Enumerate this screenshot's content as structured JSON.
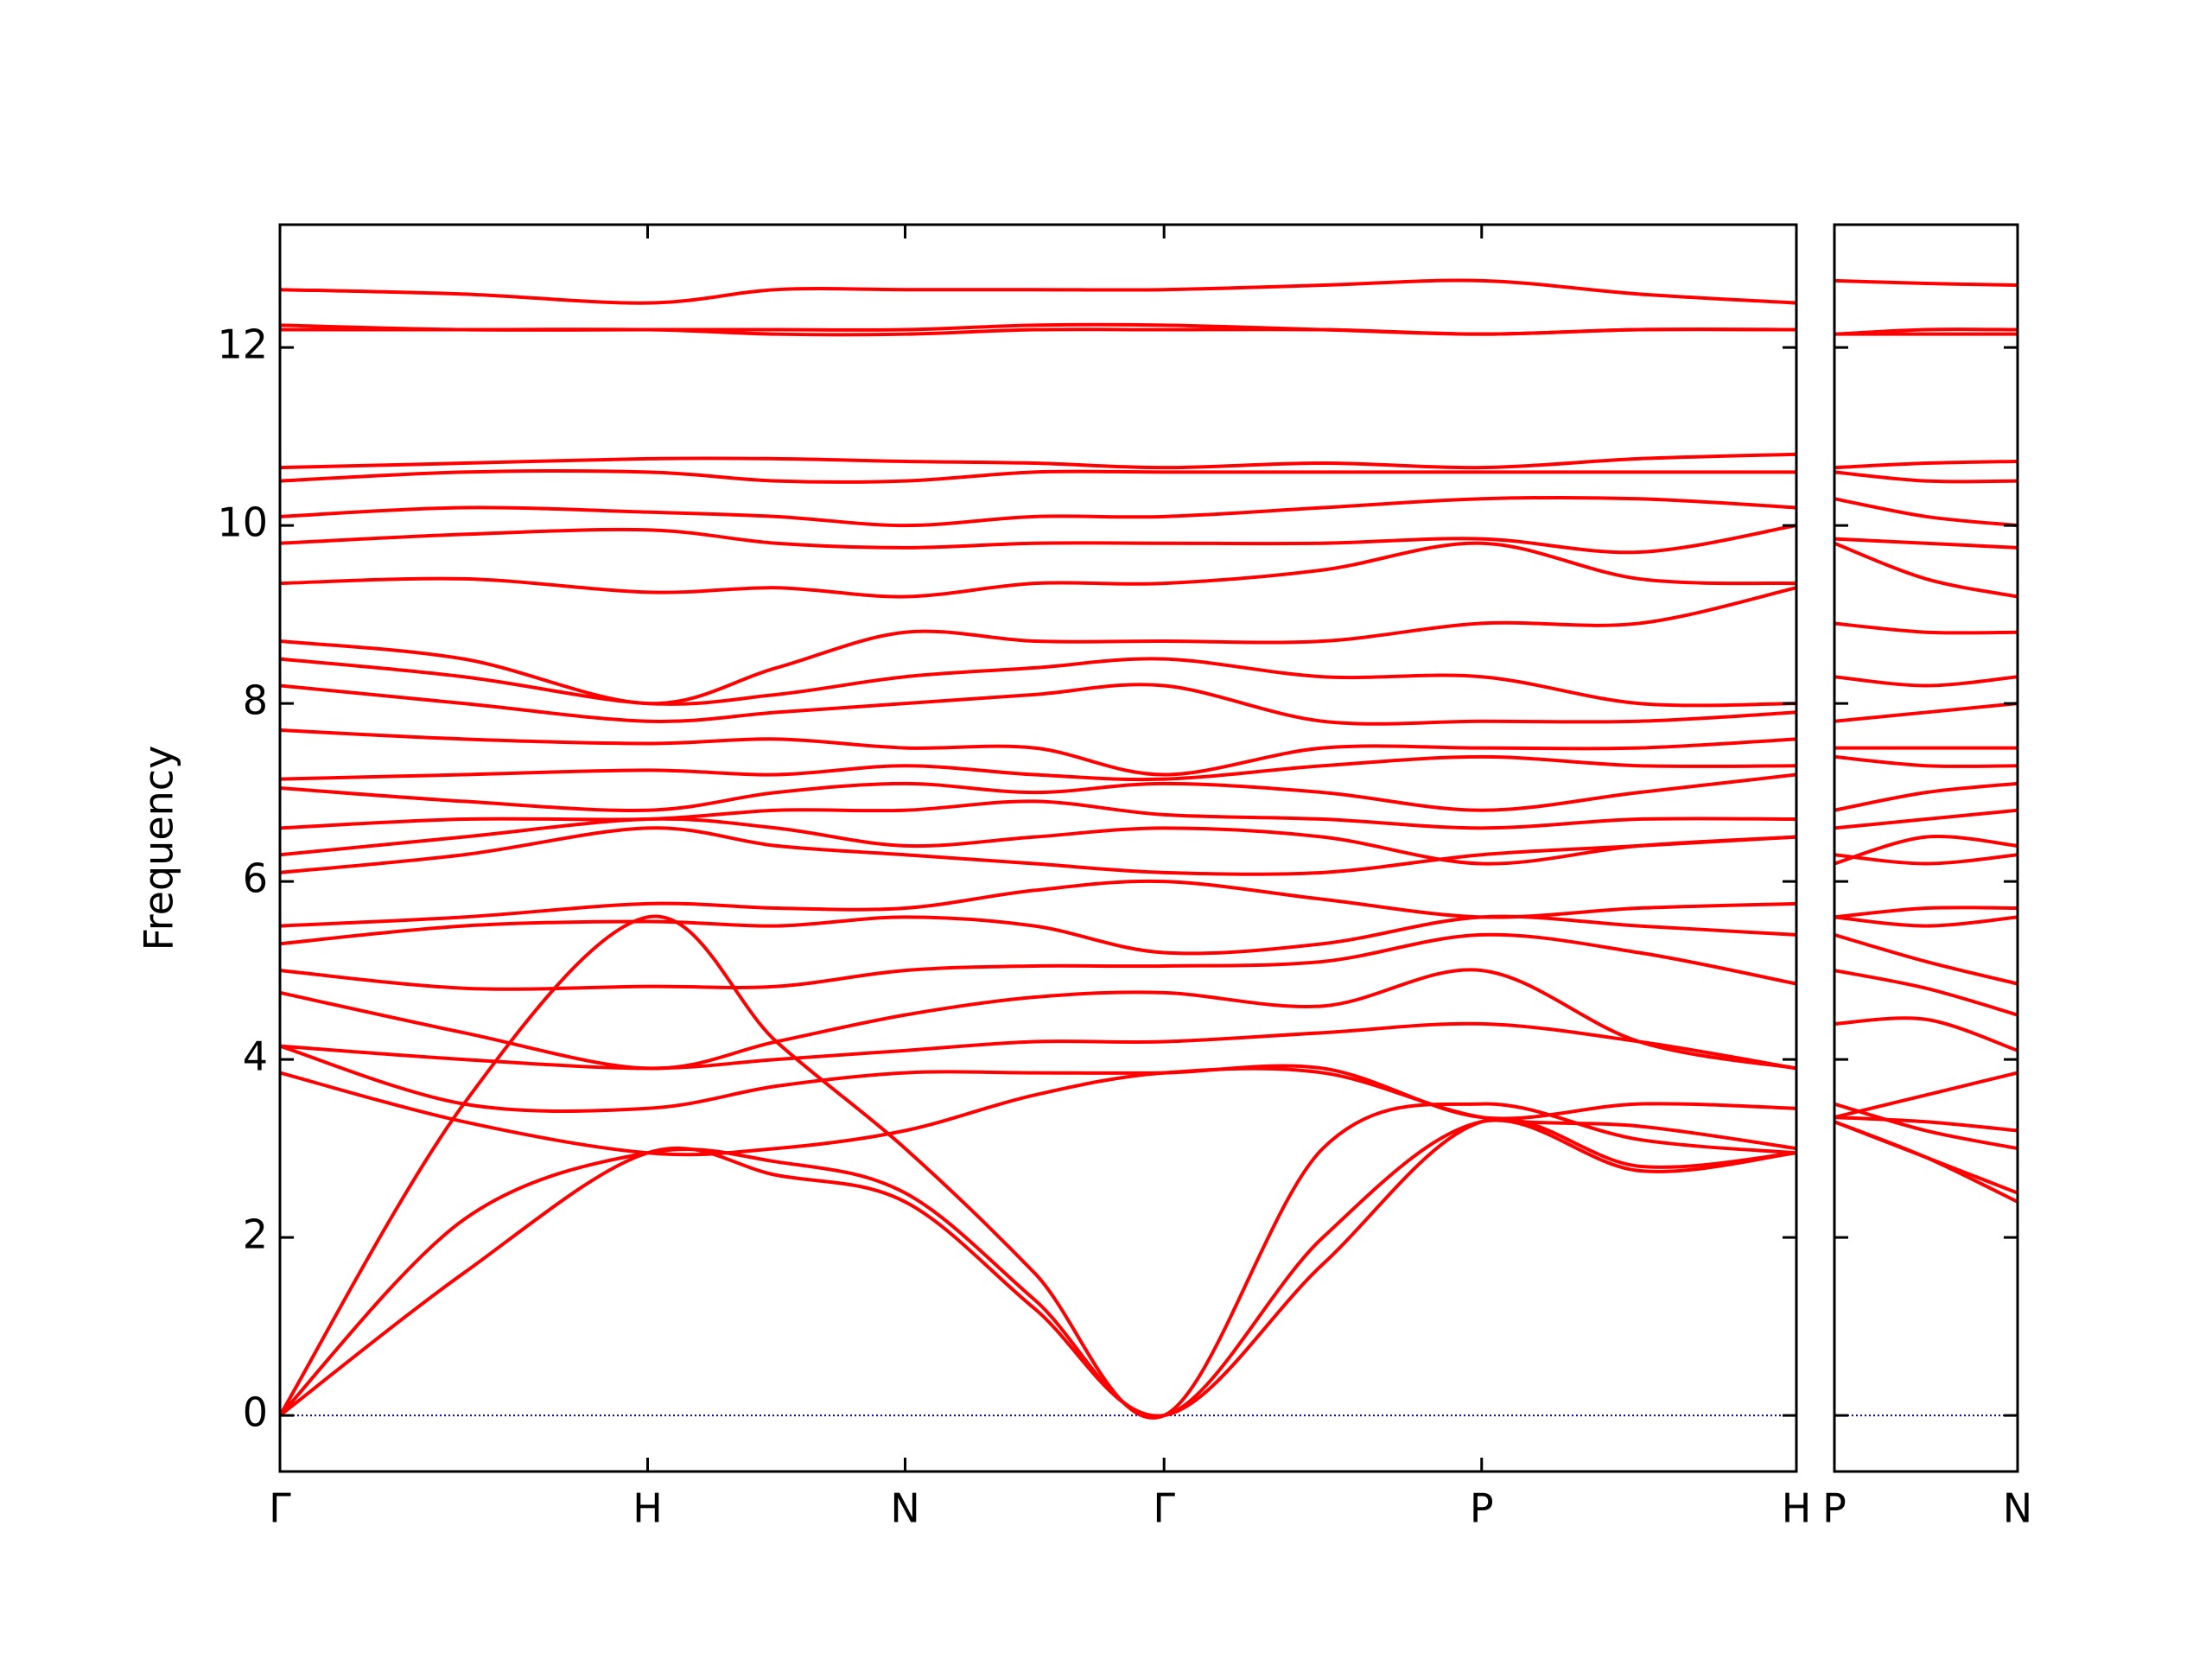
{
  "chart_data": [
    {
      "type": "line",
      "ylabel": "Frequency",
      "color": "#ff0000",
      "zero_line_color": "#0000cc",
      "x": [
        0,
        1.285,
        2.57,
        3.47,
        4.37,
        5.275,
        6.18,
        7.29,
        8.4,
        9.5,
        10.6
      ],
      "xlim": [
        0,
        10.6
      ],
      "xticks": [
        {
          "value": 0,
          "label": "Γ"
        },
        {
          "value": 2.57,
          "label": "H"
        },
        {
          "value": 4.37,
          "label": "N"
        },
        {
          "value": 6.18,
          "label": "Γ"
        },
        {
          "value": 8.4,
          "label": "P"
        },
        {
          "value": 10.6,
          "label": "H"
        }
      ],
      "ylim": [
        -0.63,
        13.38
      ],
      "yticks": [
        0,
        2,
        4,
        6,
        8,
        10,
        12
      ],
      "series": [
        {
          "values": [
            0,
            1.6,
            2.95,
            2.7,
            2.4,
            1.2,
            0,
            1.7,
            3.3,
            2.8,
            2.95
          ]
        },
        {
          "values": [
            0,
            2.2,
            2.95,
            2.85,
            2.5,
            1.3,
            0,
            2.0,
            3.3,
            2.75,
            2.95
          ]
        },
        {
          "values": [
            0,
            3.5,
            5.6,
            4.2,
            3.0,
            1.6,
            0,
            3.0,
            3.5,
            3.1,
            2.95
          ]
        },
        {
          "values": [
            3.85,
            3.3,
            2.95,
            3.0,
            3.2,
            3.6,
            3.85,
            3.85,
            3.35,
            3.25,
            3.0
          ]
        },
        {
          "values": [
            4.15,
            3.5,
            3.45,
            3.7,
            3.85,
            3.85,
            3.85,
            3.9,
            3.35,
            3.5,
            3.45
          ]
        },
        {
          "values": [
            4.15,
            4.0,
            3.9,
            4.0,
            4.1,
            4.2,
            4.2,
            4.3,
            4.4,
            4.2,
            3.9
          ]
        },
        {
          "values": [
            4.75,
            4.3,
            3.9,
            4.2,
            4.5,
            4.7,
            4.75,
            4.6,
            5.0,
            4.2,
            3.9
          ]
        },
        {
          "values": [
            5.0,
            4.8,
            4.82,
            4.82,
            5.0,
            5.05,
            5.05,
            5.1,
            5.4,
            5.2,
            4.85
          ]
        },
        {
          "values": [
            5.3,
            5.5,
            5.55,
            5.5,
            5.6,
            5.5,
            5.2,
            5.3,
            5.6,
            5.5,
            5.4
          ]
        },
        {
          "values": [
            5.5,
            5.6,
            5.75,
            5.7,
            5.7,
            5.9,
            6.0,
            5.8,
            5.6,
            5.7,
            5.75
          ]
        },
        {
          "values": [
            6.1,
            6.3,
            6.6,
            6.4,
            6.3,
            6.2,
            6.1,
            6.1,
            6.3,
            6.4,
            6.5
          ]
        },
        {
          "values": [
            6.3,
            6.5,
            6.7,
            6.6,
            6.4,
            6.5,
            6.6,
            6.5,
            6.2,
            6.4,
            6.5
          ]
        },
        {
          "values": [
            6.6,
            6.7,
            6.7,
            6.8,
            6.8,
            6.9,
            6.75,
            6.7,
            6.6,
            6.7,
            6.7
          ]
        },
        {
          "values": [
            7.05,
            6.9,
            6.8,
            7.0,
            7.1,
            7.0,
            7.1,
            7.0,
            6.8,
            7.0,
            7.2
          ]
        },
        {
          "values": [
            7.15,
            7.2,
            7.25,
            7.2,
            7.3,
            7.2,
            7.15,
            7.3,
            7.4,
            7.3,
            7.3
          ]
        },
        {
          "values": [
            7.7,
            7.6,
            7.55,
            7.6,
            7.5,
            7.5,
            7.2,
            7.5,
            7.5,
            7.5,
            7.6
          ]
        },
        {
          "values": [
            8.2,
            8.0,
            7.8,
            7.9,
            8.0,
            8.1,
            8.2,
            7.8,
            7.8,
            7.8,
            7.9
          ]
        },
        {
          "values": [
            8.5,
            8.3,
            8.0,
            8.1,
            8.3,
            8.4,
            8.5,
            8.3,
            8.3,
            8.0,
            8.0
          ]
        },
        {
          "values": [
            8.7,
            8.5,
            8.0,
            8.4,
            8.8,
            8.7,
            8.7,
            8.7,
            8.9,
            8.9,
            9.3
          ]
        },
        {
          "values": [
            9.35,
            9.4,
            9.25,
            9.3,
            9.2,
            9.35,
            9.35,
            9.5,
            9.8,
            9.4,
            9.35
          ]
        },
        {
          "values": [
            9.8,
            9.9,
            9.95,
            9.8,
            9.75,
            9.8,
            9.8,
            9.8,
            9.85,
            9.7,
            10.0
          ]
        },
        {
          "values": [
            10.1,
            10.2,
            10.15,
            10.1,
            10.0,
            10.1,
            10.1,
            10.2,
            10.3,
            10.3,
            10.2
          ]
        },
        {
          "values": [
            10.5,
            10.6,
            10.6,
            10.5,
            10.5,
            10.6,
            10.6,
            10.6,
            10.6,
            10.6,
            10.6
          ]
        },
        {
          "values": [
            10.65,
            10.7,
            10.75,
            10.75,
            10.72,
            10.7,
            10.65,
            10.7,
            10.65,
            10.75,
            10.8
          ]
        },
        {
          "values": [
            12.2,
            12.2,
            12.2,
            12.15,
            12.15,
            12.2,
            12.2,
            12.2,
            12.15,
            12.2,
            12.2
          ]
        },
        {
          "values": [
            12.25,
            12.2,
            12.2,
            12.2,
            12.2,
            12.25,
            12.25,
            12.2,
            12.15,
            12.2,
            12.2
          ]
        },
        {
          "values": [
            12.65,
            12.6,
            12.5,
            12.65,
            12.65,
            12.65,
            12.65,
            12.7,
            12.75,
            12.6,
            12.5
          ]
        }
      ]
    },
    {
      "type": "line",
      "color": "#ff0000",
      "zero_line_color": "#0000cc",
      "ytick_labels": false,
      "x": [
        0,
        0.64,
        1.28
      ],
      "xlim": [
        0,
        1.28
      ],
      "xticks": [
        {
          "value": 0,
          "label": "P"
        },
        {
          "value": 1.28,
          "label": "N"
        }
      ],
      "ylim": [
        -0.63,
        13.38
      ],
      "yticks": [
        0,
        2,
        4,
        6,
        8,
        10,
        12
      ],
      "series": [
        {
          "values": [
            3.3,
            2.9,
            2.4
          ]
        },
        {
          "values": [
            3.3,
            2.9,
            2.5
          ]
        },
        {
          "values": [
            3.5,
            3.2,
            3.0
          ]
        },
        {
          "values": [
            3.35,
            3.3,
            3.2
          ]
        },
        {
          "values": [
            3.35,
            3.6,
            3.85
          ]
        },
        {
          "values": [
            4.4,
            4.45,
            4.1
          ]
        },
        {
          "values": [
            5.0,
            4.8,
            4.5
          ]
        },
        {
          "values": [
            5.4,
            5.1,
            4.85
          ]
        },
        {
          "values": [
            5.6,
            5.5,
            5.6
          ]
        },
        {
          "values": [
            5.6,
            5.7,
            5.7
          ]
        },
        {
          "values": [
            6.3,
            6.2,
            6.3
          ]
        },
        {
          "values": [
            6.2,
            6.5,
            6.4
          ]
        },
        {
          "values": [
            6.6,
            6.7,
            6.8
          ]
        },
        {
          "values": [
            6.8,
            7.0,
            7.1
          ]
        },
        {
          "values": [
            7.4,
            7.3,
            7.3
          ]
        },
        {
          "values": [
            7.5,
            7.5,
            7.5
          ]
        },
        {
          "values": [
            7.8,
            7.9,
            8.0
          ]
        },
        {
          "values": [
            8.3,
            8.2,
            8.3
          ]
        },
        {
          "values": [
            8.9,
            8.8,
            8.8
          ]
        },
        {
          "values": [
            9.8,
            9.4,
            9.2
          ]
        },
        {
          "values": [
            9.85,
            9.8,
            9.75
          ]
        },
        {
          "values": [
            10.3,
            10.1,
            10.0
          ]
        },
        {
          "values": [
            10.6,
            10.5,
            10.5
          ]
        },
        {
          "values": [
            10.65,
            10.7,
            10.72
          ]
        },
        {
          "values": [
            12.15,
            12.15,
            12.15
          ]
        },
        {
          "values": [
            12.15,
            12.2,
            12.2
          ]
        },
        {
          "values": [
            12.75,
            12.72,
            12.7
          ]
        }
      ]
    }
  ]
}
